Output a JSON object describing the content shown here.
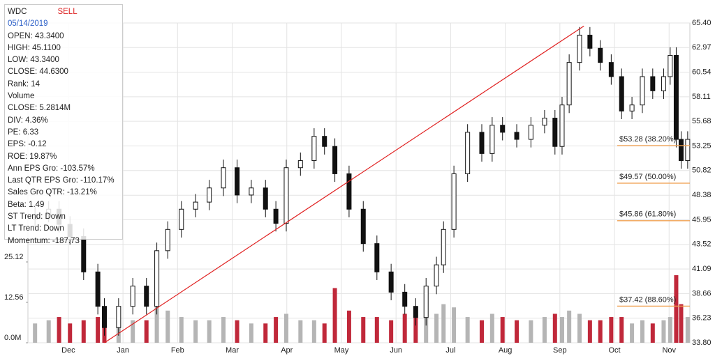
{
  "chart_data": {
    "type": "candlestick",
    "x": [
      0.39,
      0.64,
      0.83,
      1.03,
      1.28,
      1.54,
      1.66,
      1.92,
      2.18,
      2.43,
      2.62,
      2.82,
      3.07,
      3.33,
      3.58,
      3.84,
      4.09,
      4.35,
      4.61,
      4.8,
      4.99,
      5.25,
      5.5,
      5.69,
      5.88,
      6.14,
      6.4,
      6.65,
      6.91,
      7.16,
      7.36,
      7.55,
      7.74,
      7.87,
      8.06,
      8.31,
      8.57,
      8.76,
      8.95,
      9.21,
      9.47,
      9.72,
      9.91,
      10.04,
      10.17,
      10.36,
      10.55,
      10.74,
      10.94,
      11.13,
      11.32,
      11.51,
      11.7,
      11.9,
      12.02,
      12.13,
      12.22,
      12.34
    ],
    "open": [
      46.0,
      46.5,
      47.0,
      45.5,
      44.3,
      40.8,
      37.4,
      35.3,
      37.4,
      39.4,
      37.4,
      42.9,
      45.0,
      47.0,
      47.7,
      49.1,
      51.1,
      48.4,
      49.1,
      47.0,
      45.6,
      51.1,
      51.8,
      54.2,
      53.2,
      50.5,
      47.0,
      43.6,
      40.8,
      38.8,
      37.4,
      36.3,
      39.4,
      41.5,
      45.0,
      50.5,
      54.6,
      52.5,
      55.3,
      54.6,
      53.9,
      55.3,
      56.0,
      53.2,
      57.3,
      61.5,
      64.2,
      62.9,
      61.5,
      60.1,
      56.7,
      57.3,
      60.1,
      58.7,
      60.1,
      62.2,
      53.9,
      51.8
    ],
    "high": [
      47.3,
      47.8,
      47.8,
      46.3,
      45.1,
      41.6,
      38.2,
      38.2,
      40.2,
      40.2,
      43.7,
      45.8,
      47.8,
      48.5,
      49.9,
      51.9,
      51.9,
      49.9,
      49.9,
      47.8,
      51.9,
      52.6,
      55.0,
      55.0,
      54.0,
      51.3,
      47.8,
      44.4,
      41.6,
      39.6,
      38.2,
      40.2,
      42.3,
      45.8,
      51.3,
      55.4,
      55.4,
      56.1,
      56.1,
      55.4,
      56.1,
      56.8,
      56.8,
      58.1,
      62.3,
      65.0,
      65.0,
      63.7,
      62.3,
      60.9,
      58.1,
      60.9,
      60.9,
      60.9,
      63.0,
      63.0,
      54.7,
      54.7
    ],
    "low": [
      45.2,
      45.7,
      44.7,
      43.5,
      40.0,
      36.6,
      34.5,
      34.5,
      36.6,
      36.6,
      36.6,
      42.1,
      44.2,
      46.2,
      46.9,
      48.3,
      47.6,
      47.6,
      46.2,
      44.8,
      44.8,
      50.3,
      51.0,
      52.4,
      49.7,
      46.2,
      42.8,
      40.0,
      38.0,
      36.6,
      35.5,
      35.5,
      38.6,
      40.7,
      44.2,
      49.7,
      51.7,
      51.7,
      53.8,
      53.1,
      53.1,
      54.5,
      52.4,
      52.4,
      56.5,
      60.7,
      62.1,
      60.7,
      59.3,
      55.9,
      55.9,
      56.5,
      57.9,
      57.9,
      59.3,
      53.1,
      51.0,
      51.0
    ],
    "close": [
      46.5,
      47.0,
      45.5,
      44.3,
      40.8,
      37.4,
      35.3,
      37.4,
      39.4,
      37.4,
      42.9,
      45.0,
      47.0,
      47.7,
      49.1,
      51.1,
      48.4,
      49.1,
      47.0,
      45.6,
      51.1,
      51.8,
      54.2,
      53.2,
      50.5,
      47.0,
      43.6,
      40.8,
      38.8,
      37.4,
      36.3,
      39.4,
      41.5,
      45.0,
      50.5,
      54.6,
      52.5,
      55.3,
      54.6,
      53.9,
      55.3,
      56.0,
      53.2,
      57.3,
      61.5,
      64.2,
      62.9,
      61.5,
      60.1,
      56.7,
      57.3,
      60.1,
      58.7,
      60.1,
      62.2,
      53.9,
      51.8,
      53.9
    ],
    "volume": [
      6,
      7,
      8,
      6,
      7,
      8,
      9,
      8,
      7,
      7,
      20,
      10,
      8,
      7,
      7,
      8,
      7,
      6,
      6,
      8,
      9,
      7,
      7,
      6,
      17,
      10,
      8,
      8,
      7,
      9,
      10,
      8,
      9,
      12,
      11,
      8,
      7,
      9,
      8,
      7,
      7,
      8,
      9,
      8,
      10,
      9,
      7,
      7,
      8,
      8,
      6,
      7,
      6,
      7,
      8,
      21,
      12,
      8
    ],
    "candle_color": "#111111",
    "volume_down_color": "#c0283a",
    "volume_up_color": "#b5b5b5",
    "xlim": [
      0.26,
      12.38
    ],
    "xticks": [
      {
        "value": 1,
        "label": "Dec"
      },
      {
        "value": 2,
        "label": "Jan"
      },
      {
        "value": 3,
        "label": "Feb"
      },
      {
        "value": 4,
        "label": "Mar"
      },
      {
        "value": 5,
        "label": "Apr"
      },
      {
        "value": 6,
        "label": "May"
      },
      {
        "value": 7,
        "label": "Jun"
      },
      {
        "value": 8,
        "label": "Jul"
      },
      {
        "value": 9,
        "label": "Aug"
      },
      {
        "value": 10,
        "label": "Sep"
      },
      {
        "value": 11,
        "label": "Oct"
      },
      {
        "value": 12,
        "label": "Nov"
      }
    ],
    "ylim": [
      33.8,
      65.4
    ],
    "yticks": [
      {
        "value": 65.4,
        "label": "65.40"
      },
      62.97,
      60.54,
      58.11,
      55.68,
      53.25,
      50.82,
      48.38,
      45.95,
      43.52,
      41.09,
      38.66,
      36.23,
      {
        "value": 33.8,
        "label": "33.80"
      }
    ],
    "y2lim": [
      0,
      99.4
    ],
    "y2ticks": [
      {
        "value": 0,
        "label": "0.0M"
      },
      12.56,
      25.12
    ],
    "grid": true,
    "trendline": {
      "color": "#e02020",
      "x": [
        1.66,
        10.44
      ],
      "values": [
        33.8,
        65.1
      ]
    },
    "fib_color": "#f0a050",
    "fib_levels": [
      {
        "value": 53.28,
        "label": "$53.28 (38.20%)"
      },
      {
        "value": 49.57,
        "label": "$49.57 (50.00%)"
      },
      {
        "value": 45.86,
        "label": "$45.86 (61.80%)"
      },
      {
        "value": 37.42,
        "label": "$37.42 (88.60%)"
      }
    ],
    "fib_start": 11.05
  },
  "info_panel": {
    "symbol": "WDC",
    "signal": "SELL",
    "date": "05/14/2019",
    "lines": [
      "OPEN: 43.3400",
      "HIGH: 45.1100",
      "LOW: 43.3400",
      "CLOSE: 44.6300",
      "Rank: 14",
      "Volume",
      "CLOSE: 5.2814M",
      "DIV: 4.36%",
      "PE: 6.33",
      "EPS: -0.12",
      "ROE: 19.87%",
      "Ann EPS Gro: -103.57%",
      "Last QTR EPS Gro: -110.17%",
      "Sales Gro QTR: -13.21%",
      "Beta: 1.49",
      "ST Trend: Down",
      "LT Trend: Down",
      "Momentum: -187.73"
    ]
  }
}
